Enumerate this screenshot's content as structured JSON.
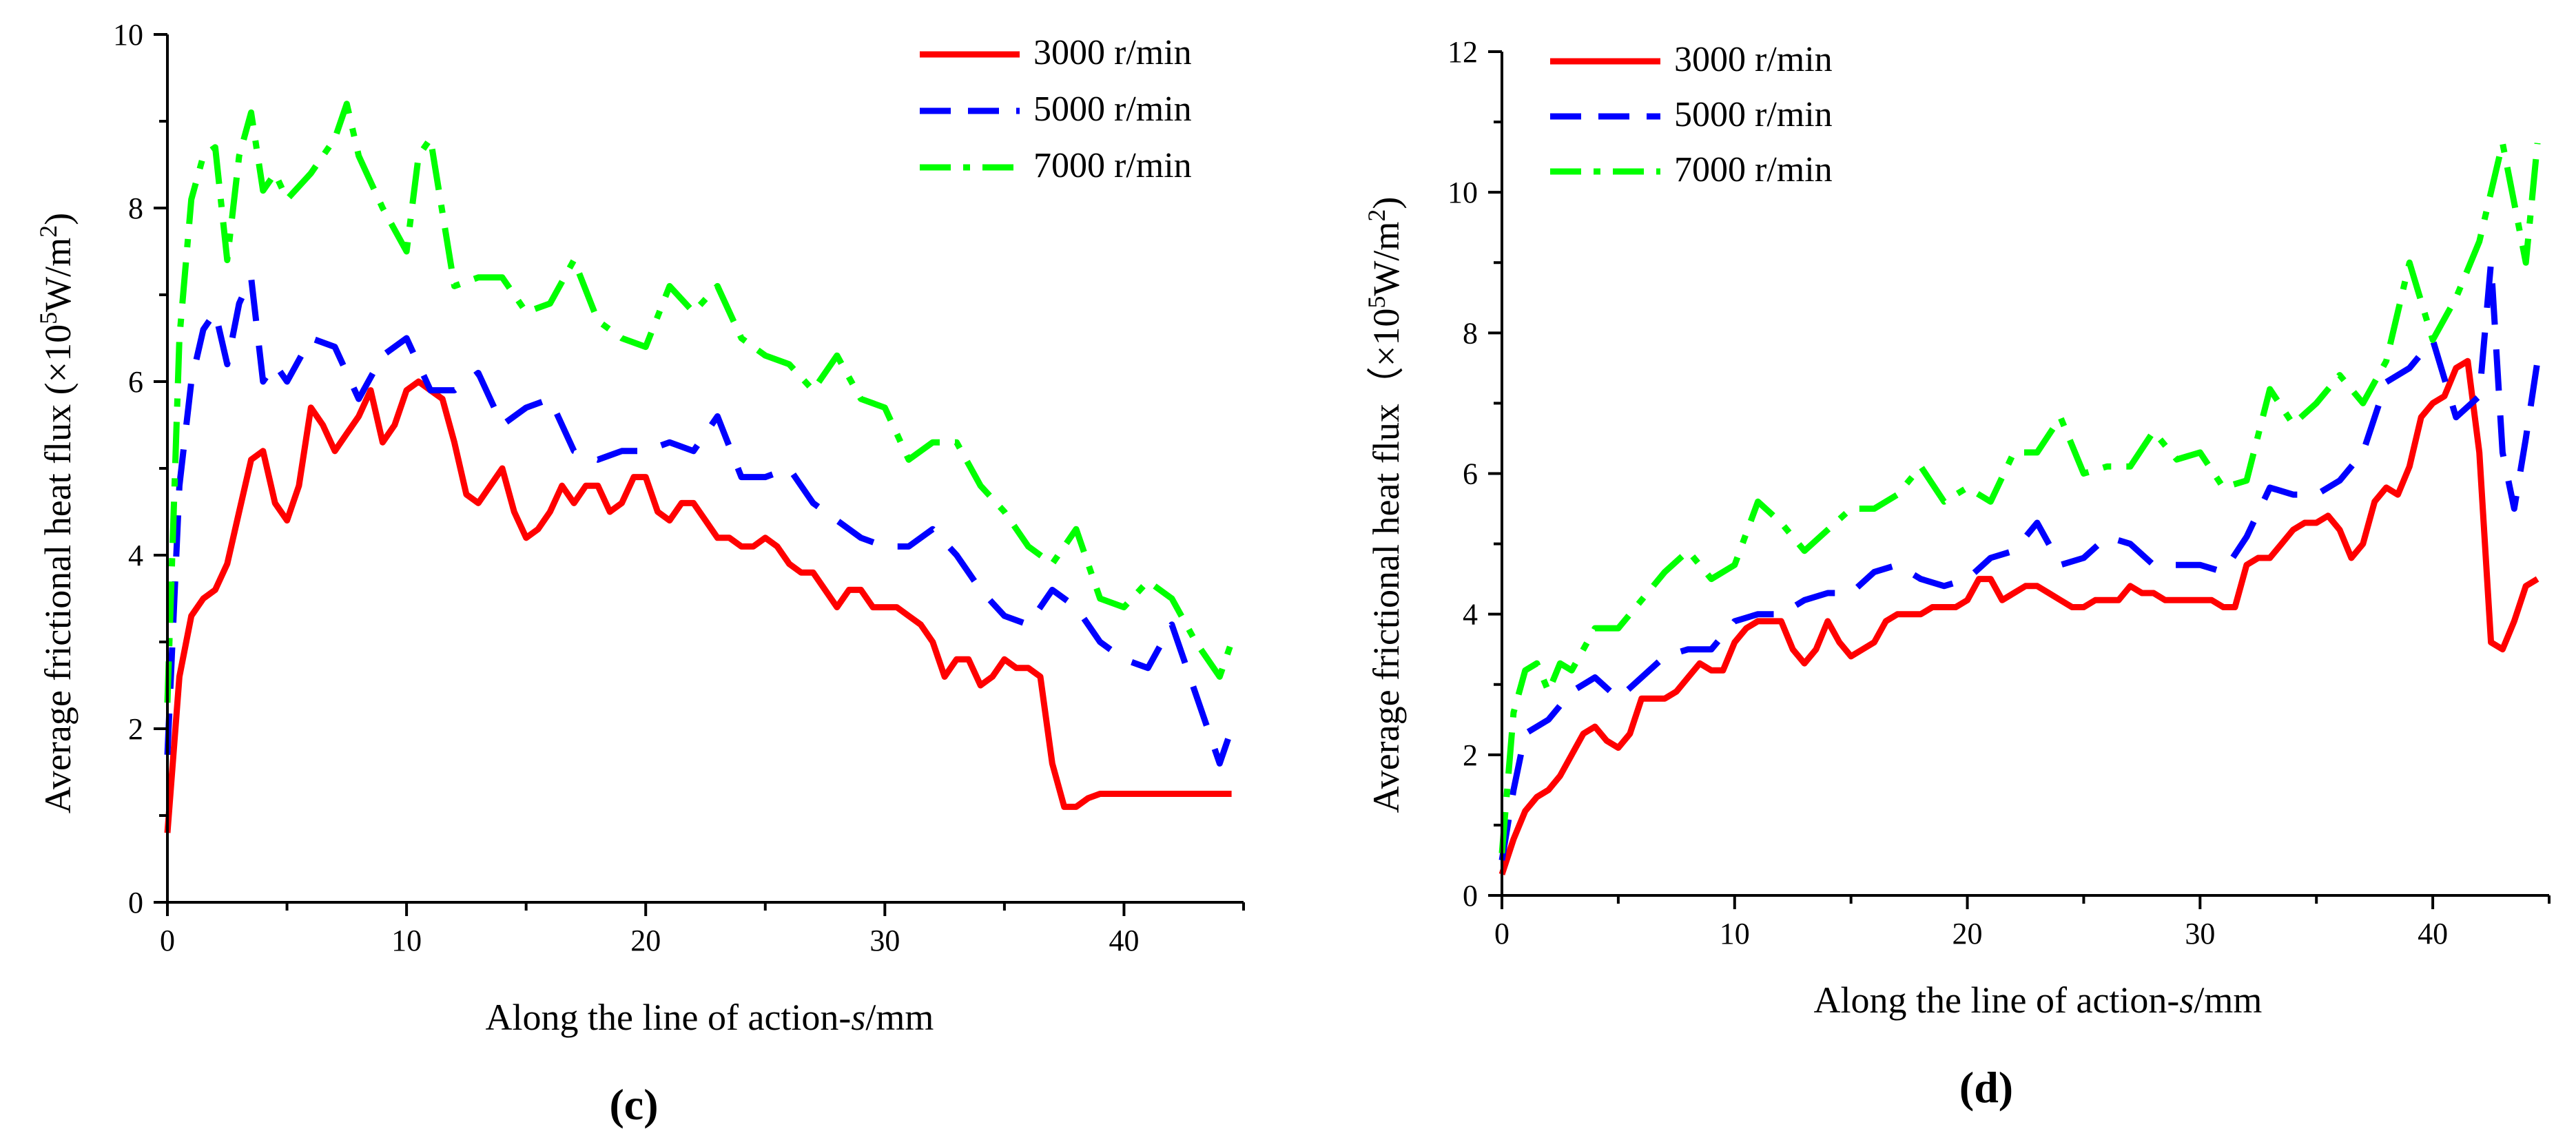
{
  "chart_data": [
    {
      "panel": "c",
      "panel_label": "(c)",
      "type": "line",
      "xlabel": "Along the line of action-s/mm",
      "xlabel_prefix": "Along the line of action-",
      "xlabel_italic": "s",
      "xlabel_suffix": "/mm",
      "ylabel": "Average frictional heat flux (×10^5W/m^2)",
      "ylabel_pre": "Average frictional heat flux (×10",
      "ylabel_sup1": "5",
      "ylabel_mid": "W/m",
      "ylabel_sup2": "2",
      "ylabel_post": ")",
      "xlim": [
        0,
        45
      ],
      "ylim": [
        0,
        10
      ],
      "xticks": [
        0,
        10,
        20,
        30,
        40
      ],
      "yticks": [
        0,
        2,
        4,
        6,
        8,
        10
      ],
      "legend_position": "top-right",
      "series": [
        {
          "name": "3000 r/min",
          "color": "#ff0000",
          "style": "solid",
          "x": [
            0,
            0.5,
            1,
            1.5,
            2,
            2.5,
            3,
            3.5,
            4,
            4.5,
            5,
            5.5,
            6,
            6.5,
            7,
            7.5,
            8,
            8.5,
            9,
            9.5,
            10,
            10.5,
            11,
            11.5,
            12,
            12.5,
            13,
            13.5,
            14,
            14.5,
            15,
            15.5,
            16,
            16.5,
            17,
            17.5,
            18,
            18.5,
            19,
            19.5,
            20,
            20.5,
            21,
            21.5,
            22,
            22.5,
            23,
            23.5,
            24,
            24.5,
            25,
            25.5,
            26,
            26.5,
            27,
            27.5,
            28,
            28.5,
            29,
            29.5,
            30,
            30.5,
            31,
            31.5,
            32,
            32.5,
            33,
            33.5,
            34,
            34.5,
            35,
            35.5,
            36,
            36.5,
            37,
            37.5,
            38,
            38.5,
            39,
            39.5,
            40,
            40.5,
            41,
            41.5,
            42,
            42.5,
            43,
            43.5,
            44,
            44.5
          ],
          "y": [
            0.8,
            2.6,
            3.3,
            3.5,
            3.6,
            3.9,
            4.5,
            5.1,
            5.2,
            4.6,
            4.4,
            4.8,
            5.7,
            5.5,
            5.2,
            5.4,
            5.6,
            5.9,
            5.3,
            5.5,
            5.9,
            6.0,
            5.9,
            5.8,
            5.3,
            4.7,
            4.6,
            4.8,
            5.0,
            4.5,
            4.2,
            4.3,
            4.5,
            4.8,
            4.6,
            4.8,
            4.8,
            4.5,
            4.6,
            4.9,
            4.9,
            4.5,
            4.4,
            4.6,
            4.6,
            4.4,
            4.2,
            4.2,
            4.1,
            4.1,
            4.2,
            4.1,
            3.9,
            3.8,
            3.8,
            3.6,
            3.4,
            3.6,
            3.6,
            3.4,
            3.4,
            3.4,
            3.3,
            3.2,
            3.0,
            2.6,
            2.8,
            2.8,
            2.5,
            2.6,
            2.8,
            2.7,
            2.7,
            2.6,
            1.6,
            1.1,
            1.1,
            1.2,
            1.25,
            1.25,
            1.25,
            1.25,
            1.25,
            1.25,
            1.25,
            1.25,
            1.25,
            1.25,
            1.25,
            1.25
          ]
        },
        {
          "name": "5000 r/min",
          "color": "#0000ff",
          "style": "dashed",
          "x": [
            0,
            0.5,
            1,
            1.5,
            2,
            2.5,
            3,
            3.5,
            4,
            4.5,
            5,
            6,
            7,
            8,
            9,
            10,
            11,
            12,
            13,
            14,
            15,
            16,
            17,
            18,
            19,
            20,
            21,
            22,
            23,
            24,
            25,
            26,
            27,
            28,
            29,
            30,
            31,
            32,
            33,
            34,
            35,
            36,
            37,
            38,
            39,
            40,
            41,
            42,
            43,
            44,
            44.5
          ],
          "y": [
            1.7,
            4.8,
            6.0,
            6.6,
            6.8,
            6.2,
            6.9,
            7.2,
            6.0,
            6.2,
            6.0,
            6.5,
            6.4,
            5.8,
            6.3,
            6.5,
            5.9,
            5.9,
            6.1,
            5.5,
            5.7,
            5.8,
            5.2,
            5.1,
            5.2,
            5.2,
            5.3,
            5.2,
            5.6,
            4.9,
            4.9,
            5.0,
            4.6,
            4.4,
            4.2,
            4.1,
            4.1,
            4.3,
            4.0,
            3.6,
            3.3,
            3.2,
            3.6,
            3.4,
            3.0,
            2.8,
            2.7,
            3.2,
            2.4,
            1.6,
            2.0
          ]
        },
        {
          "name": "7000 r/min",
          "color": "#00ff00",
          "style": "dashdot",
          "x": [
            0,
            0.5,
            1,
            1.5,
            2,
            2.5,
            3,
            3.5,
            4,
            4.5,
            5,
            6,
            7,
            7.5,
            8,
            9,
            10,
            10.5,
            11,
            12,
            13,
            14,
            15,
            16,
            17,
            18,
            19,
            20,
            21,
            22,
            23,
            24,
            25,
            26,
            27,
            28,
            29,
            30,
            31,
            32,
            33,
            34,
            35,
            36,
            37,
            38,
            39,
            40,
            41,
            42,
            43,
            44,
            44.5
          ],
          "y": [
            2.3,
            6.5,
            8.1,
            8.6,
            8.7,
            7.4,
            8.6,
            9.1,
            8.2,
            8.4,
            8.1,
            8.4,
            8.8,
            9.2,
            8.6,
            8.0,
            7.5,
            8.6,
            8.8,
            7.1,
            7.2,
            7.2,
            6.8,
            6.9,
            7.4,
            6.7,
            6.5,
            6.4,
            7.1,
            6.8,
            7.1,
            6.5,
            6.3,
            6.2,
            5.9,
            6.3,
            5.8,
            5.7,
            5.1,
            5.3,
            5.3,
            4.8,
            4.5,
            4.1,
            3.9,
            4.3,
            3.5,
            3.4,
            3.7,
            3.5,
            3.0,
            2.6,
            3.0
          ]
        }
      ]
    },
    {
      "panel": "d",
      "panel_label": "(d)",
      "type": "line",
      "xlabel": "Along the line of action-s/mm",
      "xlabel_prefix": "Along the line of action-",
      "xlabel_italic": "s",
      "xlabel_suffix": "/mm",
      "ylabel": "Average frictional heat flux (×10^5W/m^2)",
      "ylabel_pre": "Average frictional heat flux（×10",
      "ylabel_sup1": "5",
      "ylabel_mid": "W/m",
      "ylabel_sup2": "2",
      "ylabel_post": ")",
      "xlim": [
        0,
        45
      ],
      "ylim": [
        0,
        12
      ],
      "xticks": [
        0,
        10,
        20,
        30,
        40
      ],
      "yticks": [
        0,
        2,
        4,
        6,
        8,
        10,
        12
      ],
      "legend_position": "top-left",
      "series": [
        {
          "name": "3000 r/min",
          "color": "#ff0000",
          "style": "solid",
          "x": [
            0,
            0.5,
            1,
            1.5,
            2,
            2.5,
            3,
            3.5,
            4,
            4.5,
            5,
            5.5,
            6,
            6.5,
            7,
            7.5,
            8,
            8.5,
            9,
            9.5,
            10,
            10.5,
            11,
            11.5,
            12,
            12.5,
            13,
            13.5,
            14,
            14.5,
            15,
            15.5,
            16,
            16.5,
            17,
            17.5,
            18,
            18.5,
            19,
            19.5,
            20,
            20.5,
            21,
            21.5,
            22,
            22.5,
            23,
            23.5,
            24,
            24.5,
            25,
            25.5,
            26,
            26.5,
            27,
            27.5,
            28,
            28.5,
            29,
            29.5,
            30,
            30.5,
            31,
            31.5,
            32,
            32.5,
            33,
            33.5,
            34,
            34.5,
            35,
            35.5,
            36,
            36.5,
            37,
            37.5,
            38,
            38.5,
            39,
            39.5,
            40,
            40.5,
            41,
            41.5,
            42,
            42.5,
            43,
            43.5,
            44,
            44.5
          ],
          "y": [
            0.3,
            0.8,
            1.2,
            1.4,
            1.5,
            1.7,
            2.0,
            2.3,
            2.4,
            2.2,
            2.1,
            2.3,
            2.8,
            2.8,
            2.8,
            2.9,
            3.1,
            3.3,
            3.2,
            3.2,
            3.6,
            3.8,
            3.9,
            3.9,
            3.9,
            3.5,
            3.3,
            3.5,
            3.9,
            3.6,
            3.4,
            3.5,
            3.6,
            3.9,
            4.0,
            4.0,
            4.0,
            4.1,
            4.1,
            4.1,
            4.2,
            4.5,
            4.5,
            4.2,
            4.3,
            4.4,
            4.4,
            4.3,
            4.2,
            4.1,
            4.1,
            4.2,
            4.2,
            4.2,
            4.4,
            4.3,
            4.3,
            4.2,
            4.2,
            4.2,
            4.2,
            4.2,
            4.1,
            4.1,
            4.7,
            4.8,
            4.8,
            5.0,
            5.2,
            5.3,
            5.3,
            5.4,
            5.2,
            4.8,
            5.0,
            5.6,
            5.8,
            5.7,
            6.1,
            6.8,
            7.0,
            7.1,
            7.5,
            7.6,
            6.3,
            3.6,
            3.5,
            3.9,
            4.4,
            4.5
          ]
        },
        {
          "name": "5000 r/min",
          "color": "#0000ff",
          "style": "dashed",
          "x": [
            0,
            0.5,
            1,
            2,
            3,
            4,
            5,
            6,
            7,
            8,
            9,
            10,
            11,
            12,
            13,
            14,
            15,
            16,
            17,
            18,
            19,
            20,
            21,
            22,
            23,
            24,
            25,
            26,
            27,
            28,
            29,
            30,
            31,
            32,
            33,
            34,
            35,
            36,
            37,
            38,
            39,
            40,
            41,
            42,
            42.5,
            43,
            43.5,
            44,
            44.5
          ],
          "y": [
            0.5,
            1.5,
            2.3,
            2.5,
            2.9,
            3.1,
            2.8,
            3.1,
            3.4,
            3.5,
            3.5,
            3.9,
            4.0,
            4.0,
            4.2,
            4.3,
            4.3,
            4.6,
            4.7,
            4.5,
            4.4,
            4.5,
            4.8,
            4.9,
            5.3,
            4.7,
            4.8,
            5.1,
            5.0,
            4.7,
            4.7,
            4.7,
            4.6,
            5.1,
            5.8,
            5.7,
            5.7,
            5.9,
            6.3,
            7.3,
            7.5,
            7.9,
            6.8,
            7.1,
            9.0,
            6.3,
            5.5,
            6.5,
            7.6
          ]
        },
        {
          "name": "7000 r/min",
          "color": "#00ff00",
          "style": "dashdot",
          "x": [
            0,
            0.5,
            1,
            1.5,
            2,
            2.5,
            3,
            4,
            5,
            6,
            7,
            8,
            9,
            10,
            11,
            12,
            13,
            14,
            15,
            16,
            17,
            18,
            19,
            20,
            21,
            22,
            23,
            24,
            25,
            26,
            27,
            28,
            29,
            30,
            31,
            32,
            33,
            34,
            35,
            36,
            37,
            38,
            39,
            40,
            41,
            42,
            43,
            44,
            44.5
          ],
          "y": [
            0.6,
            2.6,
            3.2,
            3.3,
            2.9,
            3.3,
            3.2,
            3.8,
            3.8,
            4.2,
            4.6,
            4.9,
            4.5,
            4.7,
            5.6,
            5.3,
            4.9,
            5.2,
            5.5,
            5.5,
            5.7,
            6.1,
            5.6,
            5.8,
            5.6,
            6.3,
            6.3,
            6.8,
            6.0,
            6.1,
            6.1,
            6.6,
            6.2,
            6.3,
            5.8,
            5.9,
            7.2,
            6.7,
            7.0,
            7.4,
            7.0,
            7.6,
            9.0,
            7.9,
            8.5,
            9.3,
            10.7,
            9.0,
            10.7
          ]
        }
      ]
    }
  ]
}
